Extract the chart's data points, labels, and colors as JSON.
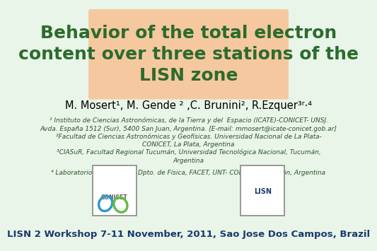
{
  "bg_color": "#e8f5e8",
  "title_box_color": "#f5c8a0",
  "title_text": "Behavior of the total electron\ncontent over three stations of the\nLISN zone",
  "title_color": "#2d6b2d",
  "title_fontsize": 18,
  "authors_text": "M. Mosert¹, M. Gende ² ,C. Brunini², R.Ezquer³⋅⁴",
  "authors_color": "#000000",
  "authors_fontsize": 10.5,
  "affil1": "¹ Instituto de Ciencias Astronómicas, de la Tierra y del  Espacio (ICATE)-CONICET- UNSJ.\nAvda. España 1512 (Sur), 5400 San Juan, Argentina. [E-mail: mmosert@icate-conicet.gob.ar]",
  "affil2": "²Facultad de Ciencias Astronómicas y Geofísicas. Universidad Nacional de La Plata-\nCONICET, La Plata, Argentina",
  "affil3": "³CIASuR, Facultad Regional Tucumán, Universidad Tecnológica Nacional, Tucumán,\nArgentina",
  "affil4": "⁴ Laboratorio de Ionósfera, Dpto. de Física, FACET, UNT- CONICET, Tucumán, Argentina",
  "affil_color": "#2f4f2f",
  "affil_fontsize": 6.5,
  "footer_text": "LISN 2 Workshop 7-11 November, 2011, Sao Jose Dos Campos, Brazil",
  "footer_color": "#1a3a6e",
  "footer_fontsize": 9.5
}
